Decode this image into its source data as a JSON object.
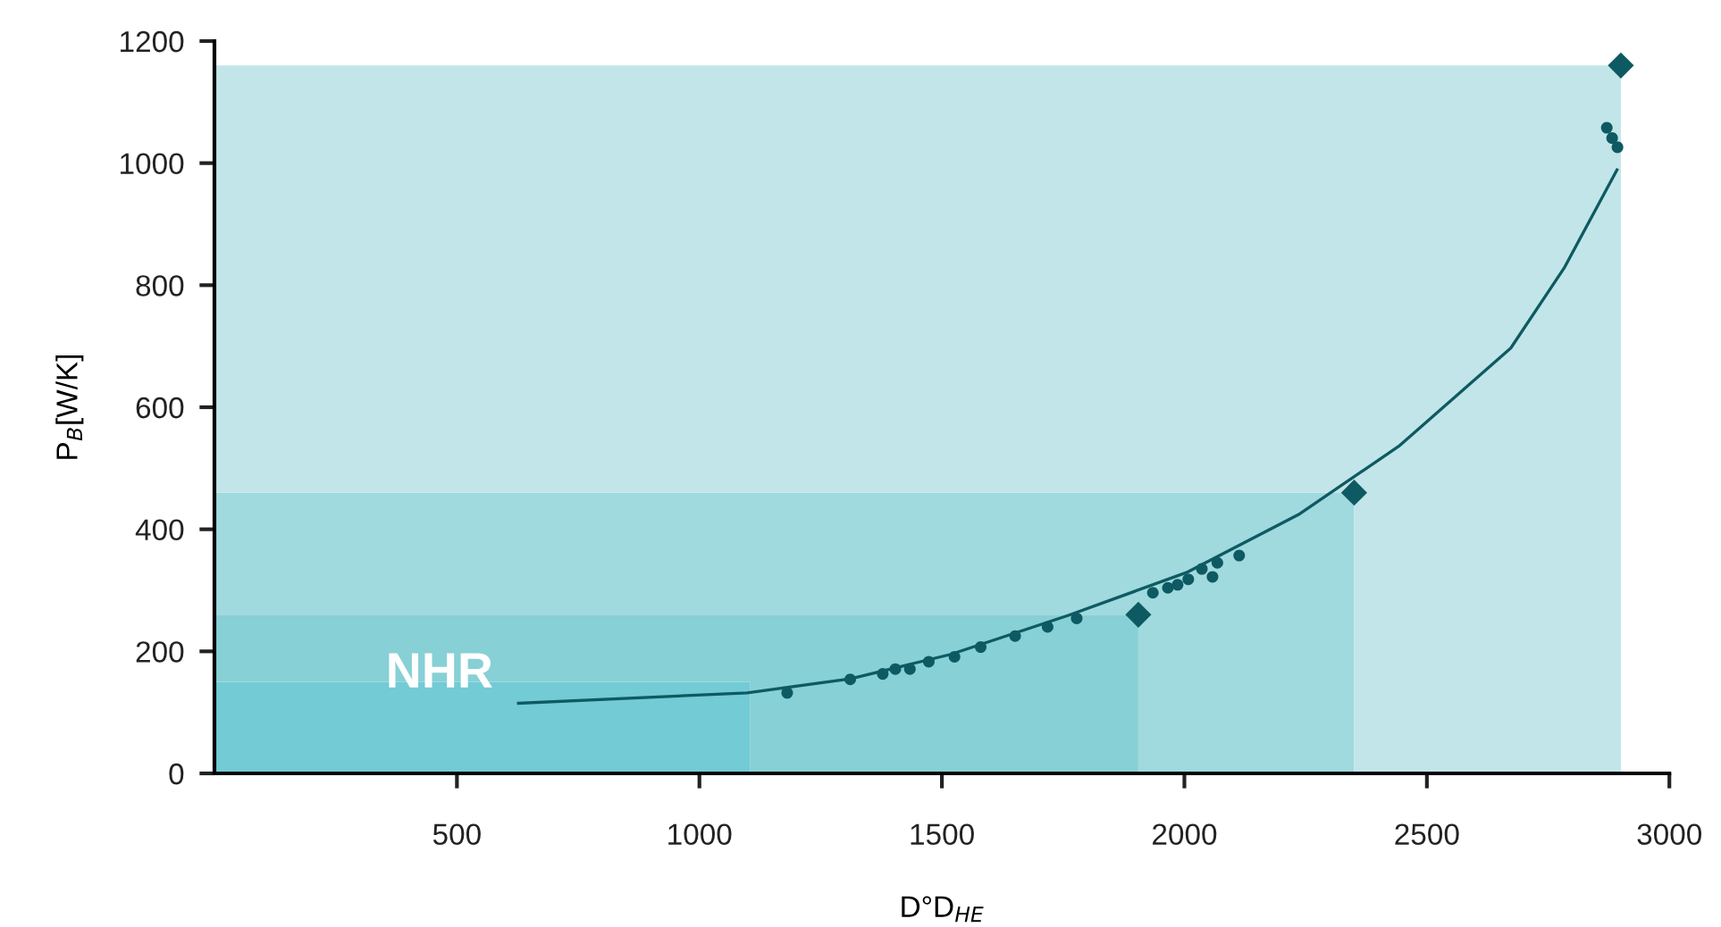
{
  "chart_data": {
    "type": "scatter",
    "xlabel": "D°D$_{HE}$",
    "ylabel": "P$_{B}$[W/K]",
    "xlim": [
      0,
      3000
    ],
    "xticks": [
      500,
      1000,
      1500,
      2000,
      2500,
      3000
    ],
    "ylim": [
      0,
      1200
    ],
    "yticks": [
      0,
      200,
      400,
      600,
      800,
      1000,
      1200
    ],
    "grid": false,
    "legend": false,
    "stacked": true,
    "series": [
      {
        "type": "area",
        "name": "NHR",
        "color": "#72cbd5",
        "x": [
          0,
          1105,
          1105,
          1905,
          1905,
          2350,
          2350,
          2900
        ],
        "values": [
          150,
          150,
          0,
          0,
          0,
          0,
          0,
          0
        ]
      },
      {
        "type": "area",
        "color": "#87d0d5",
        "x": [
          0,
          1105,
          1105,
          1905,
          1905,
          2350,
          2350,
          2900
        ],
        "values": [
          110,
          110,
          260,
          260,
          0,
          0,
          0,
          0
        ]
      },
      {
        "type": "area",
        "color": "#a0d9de",
        "x": [
          0,
          1105,
          1105,
          1905,
          1905,
          2350,
          2350,
          2900
        ],
        "values": [
          200,
          200,
          200,
          200,
          460,
          460,
          0,
          0
        ]
      },
      {
        "type": "area",
        "color": "#c2e5e9",
        "x": [
          0,
          1105,
          1105,
          1905,
          1905,
          2350,
          2350,
          2900
        ],
        "values": [
          700,
          700,
          700,
          700,
          700,
          700,
          1160,
          1160
        ]
      },
      {
        "type": "line",
        "color": "#0e5a62",
        "marker": "none",
        "x": [
          627,
          1098,
          1311,
          1518,
          1761,
          2004,
          2235,
          2442,
          2673,
          2783,
          2892
        ],
        "values": [
          115,
          132,
          155,
          195,
          259,
          329,
          424,
          536,
          697,
          828,
          989
        ]
      },
      {
        "color": "#0e5a62",
        "marker": "circle",
        "x": [
          1181,
          1311,
          1378,
          1404,
          1434,
          1473,
          1526,
          1580,
          1651,
          1718,
          1778,
          1935,
          1966,
          1986,
          2008,
          2036,
          2058,
          2068,
          2113,
          2871,
          2882,
          2893
        ],
        "values": [
          132,
          154,
          163,
          171,
          171,
          183,
          191,
          207,
          225,
          240,
          254,
          296,
          304,
          309,
          318,
          335,
          322,
          345,
          357,
          1058,
          1041,
          1026
        ]
      },
      {
        "color": "#0e5a62",
        "marker": "diamond",
        "x": [
          1905,
          2350,
          2900
        ],
        "values": [
          260,
          460,
          1160
        ]
      }
    ]
  }
}
